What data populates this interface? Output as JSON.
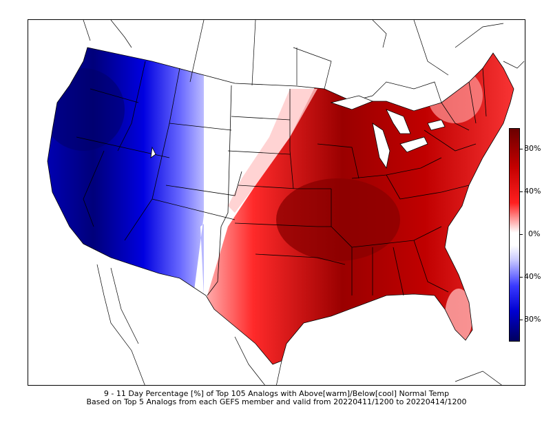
{
  "map": {
    "title_line1": "9 - 11 Day Percentage [%] of Top 105 Analogs with Above[warm]/Below[cool] Normal Temp",
    "title_line2": "Based on Top 5 Analogs from each GEFS member and valid from 20220411/1200 to 20220414/1200",
    "region": "Contiguous United States",
    "colors": {
      "warm_dark": "#7a0000",
      "warm_mid": "#d40000",
      "warm_light": "#ffb0b0",
      "neutral": "#ffffff",
      "cool_light": "#c8c8ff",
      "cool_mid": "#1010ff",
      "cool_dark": "#000060"
    }
  },
  "colorbar": {
    "ticks": [
      "80%",
      "40%",
      "0%",
      "40%",
      "80%"
    ],
    "top_category": "Above[warm]",
    "bottom_category": "Below[cool]"
  }
}
